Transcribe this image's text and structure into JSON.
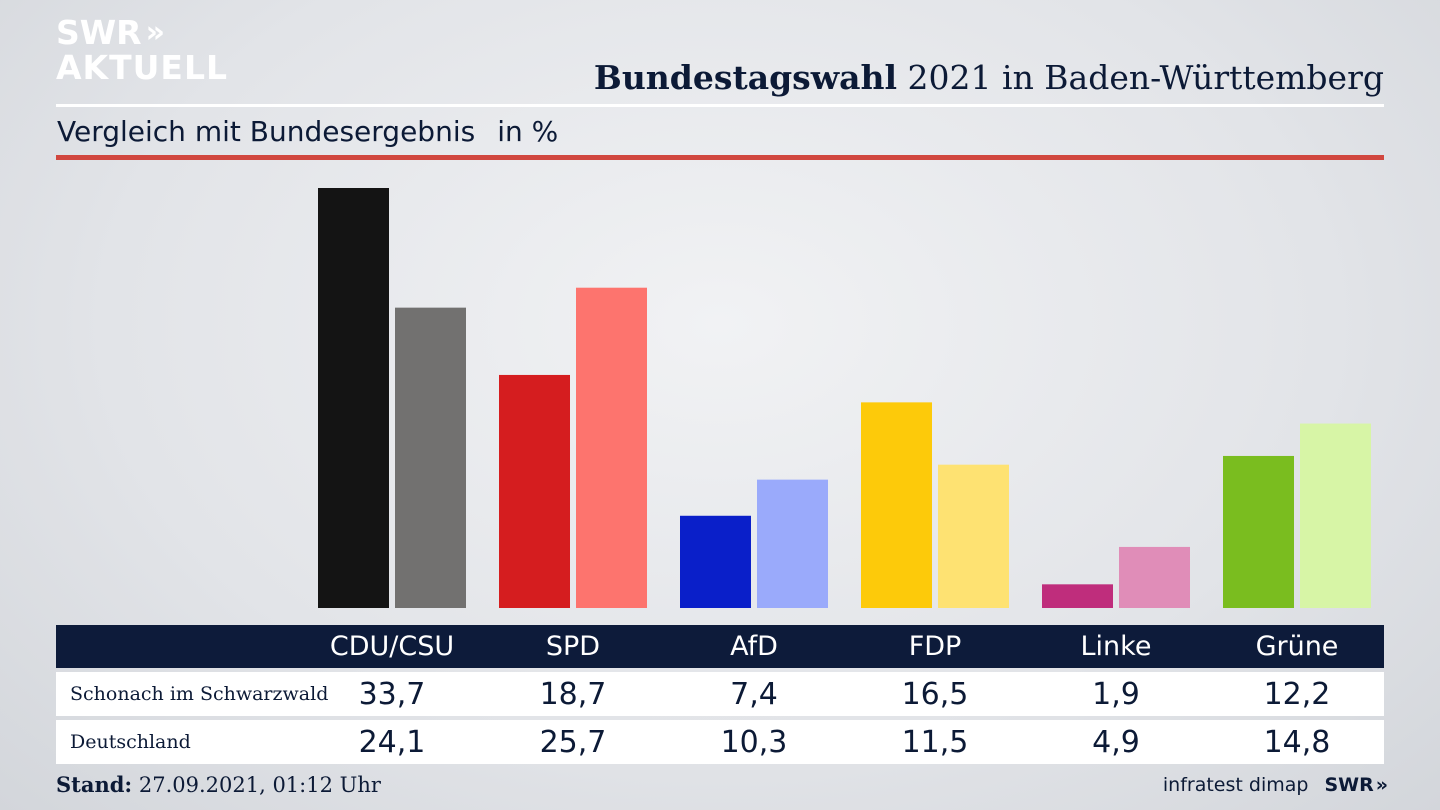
{
  "brand": {
    "line1": "SWR",
    "line2": "AKTUELL",
    "chevrons": "»"
  },
  "headline": {
    "bold": "Bundestagswahl",
    "rest": " 2021 in Baden-Württemberg"
  },
  "subtitle": {
    "text": "Vergleich mit Bundesergebnis",
    "unit": "in %"
  },
  "footer": {
    "stand_label": "Stand:",
    "stand_value": " 27.09.2021, 01:12 Uhr",
    "source": "infratest dimap",
    "logo": "SWR",
    "logo_chev": "»"
  },
  "chart_data": {
    "type": "bar",
    "categories": [
      "CDU/CSU",
      "SPD",
      "AfD",
      "FDP",
      "Linke",
      "Grüne"
    ],
    "series": [
      {
        "name": "Schonach im Schwarzwald",
        "values": [
          33.7,
          18.7,
          7.4,
          16.5,
          1.9,
          12.2
        ],
        "labels": [
          "33,7",
          "18,7",
          "7,4",
          "16,5",
          "1,9",
          "12,2"
        ]
      },
      {
        "name": "Deutschland",
        "values": [
          24.1,
          25.7,
          10.3,
          11.5,
          4.9,
          14.8
        ],
        "labels": [
          "24,1",
          "25,7",
          "10,3",
          "11,5",
          "4,9",
          "14,8"
        ]
      }
    ],
    "colors_primary": [
      "#141414",
      "#d51d1f",
      "#0a1fc9",
      "#fdca0a",
      "#bf2d7c",
      "#7abd1f"
    ],
    "colors_secondary": [
      "#727170",
      "#fd746e",
      "#9aaafb",
      "#fee272",
      "#e08db8",
      "#d7f5a6"
    ],
    "ylim": [
      0,
      33.7
    ]
  }
}
